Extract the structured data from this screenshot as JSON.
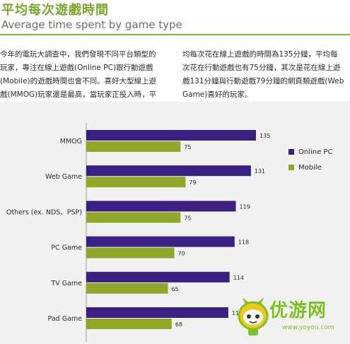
{
  "header": {
    "title_zh": "平均每次遊戲時間",
    "title_en": "Average time spent by game type"
  },
  "body_text": {
    "left": "今年的電玩大調查中，我們發現不同平台類型的\n玩家，專注在線上遊戲(Online PC)跟行動遊戲\n(Mobile)的遊戲時間也會不同。喜好大型線上遊\n戲(MMOG)玩家還是最高，當玩家正投入時，平",
    "right": "均每次花在線上遊戲的時間為135分鐘，平均每\n次花在行動遊戲也有75分鐘，其次是花在線上遊\n戲131分鐘與行動遊戲79分鐘的網頁類遊戲(Web\nGame)喜好的玩家。"
  },
  "colors": {
    "online_pc": "#3b1f82",
    "mobile": "#8fa82a",
    "accent": "#7aa62c"
  },
  "chart_data": {
    "type": "bar",
    "orientation": "horizontal",
    "categories": [
      "MMOG",
      "Web Game",
      "Others (ex. NDS、PSP)",
      "PC Game",
      "TV Game",
      "Pad Game"
    ],
    "series": [
      {
        "name": "Online PC",
        "values": [
          135,
          131,
          119,
          118,
          114,
          113
        ]
      },
      {
        "name": "Mobile",
        "values": [
          75,
          79,
          75,
          70,
          65,
          68
        ]
      }
    ],
    "legend": {
      "position": "right",
      "items": [
        "Online PC",
        "Mobile"
      ]
    },
    "xlim": [
      0,
      135
    ],
    "grid": false
  },
  "watermark": {
    "brand": "优游网",
    "url": "www.yoyou.com"
  }
}
